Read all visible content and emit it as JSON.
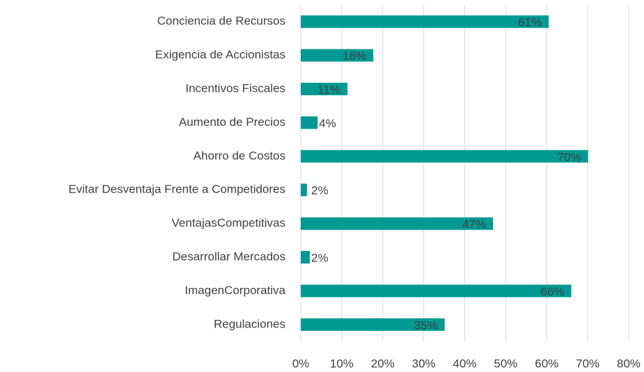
{
  "chart_data": {
    "type": "bar",
    "orientation": "horizontal",
    "categories": [
      "Conciencia de Recursos",
      "Exigencia de Accionistas",
      "Incentivos Fiscales",
      "Aumento de Precios",
      "Ahorro de Costos",
      "Evitar Desventaja Frente a Competidores",
      "VentajasCompetitivas",
      "Desarrollar Mercados",
      "ImagenCorporativa",
      "Regulaciones"
    ],
    "values": [
      60.5,
      17.7,
      11.4,
      4.1,
      70.1,
      1.5,
      46.9,
      2.2,
      66,
      35.1
    ],
    "value_labels": [
      "61%",
      "18%",
      "11%",
      "4%",
      "70%",
      "2%",
      "47%",
      "2%",
      "66%",
      "35%"
    ],
    "color": "#009a93",
    "xlim": [
      0,
      80
    ],
    "xticks": [
      {
        "value": 0,
        "label": "0%"
      },
      {
        "value": 10,
        "label": "10%"
      },
      {
        "value": 20,
        "label": "20%"
      },
      {
        "value": 30,
        "label": "30%"
      },
      {
        "value": 40,
        "label": "40%"
      },
      {
        "value": 50,
        "label": "50%"
      },
      {
        "value": 60,
        "label": "60%"
      },
      {
        "value": 70,
        "label": "70%"
      },
      {
        "value": 80,
        "label": "80%"
      }
    ],
    "grid": true
  }
}
